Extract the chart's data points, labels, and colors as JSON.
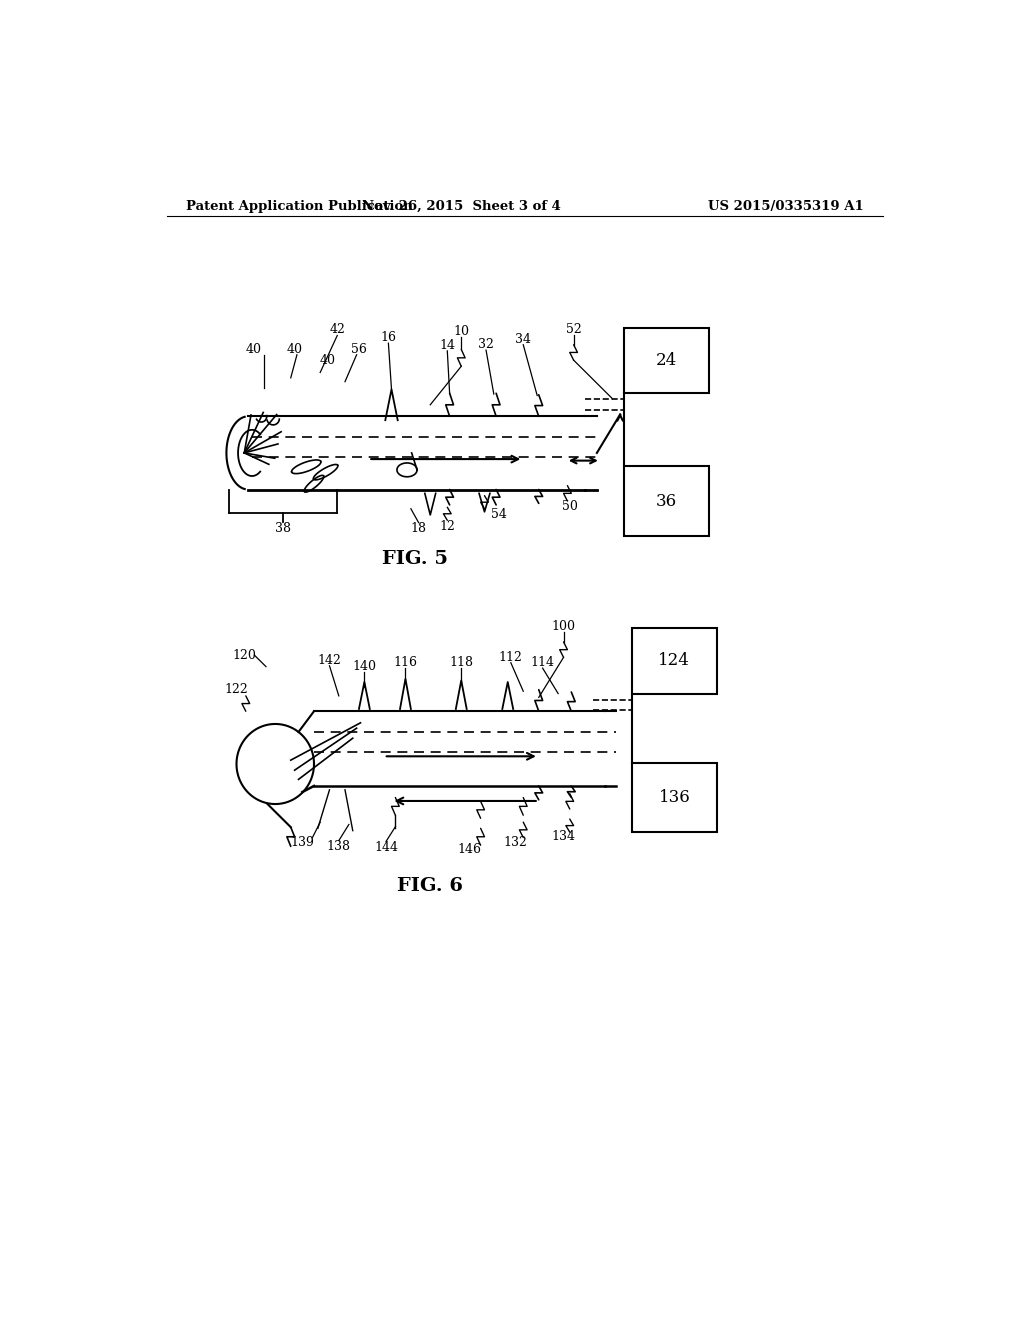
{
  "header_left": "Patent Application Publication",
  "header_mid": "Nov. 26, 2015  Sheet 3 of 4",
  "header_right": "US 2015/0335319 A1",
  "fig5_label": "FIG. 5",
  "fig6_label": "FIG. 6",
  "background": "#ffffff",
  "line_color": "#000000"
}
